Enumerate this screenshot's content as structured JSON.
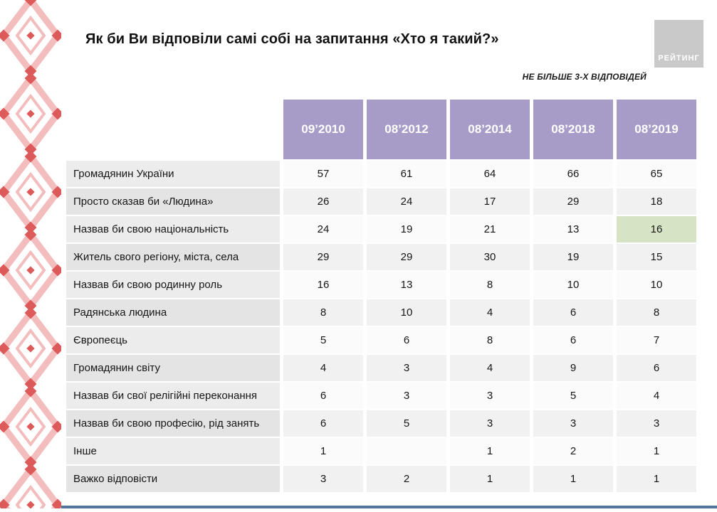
{
  "page": {
    "title": "Як би Ви відповіли самі собі на запитання «Хто я такий?»",
    "note": "НЕ БІЛЬШЕ 3-Х ВІДПОВІДЕЙ",
    "logo_text": "РЕЙТИНГ"
  },
  "colors": {
    "header_bg": "#a79cc8",
    "header_text": "#ffffff",
    "highlight_pink": "#f3dfdf",
    "highlight_green": "#d6e3c4",
    "accent_bar": "#53779c",
    "logo_bg": "#c9c9c9",
    "ornament_light": "#f3bdbd",
    "ornament_red": "#dc5a5a"
  },
  "chart_data": {
    "type": "table",
    "title": "Як би Ви відповіли самі собі на запитання «Хто я такий?»",
    "subtitle": "НЕ БІЛЬШЕ 3-Х ВІДПОВІДЕЙ",
    "legend_position": "none",
    "columns": [
      "09’2010",
      "08’2012",
      "08’2014",
      "08’2018",
      "08’2019"
    ],
    "rows": [
      {
        "label": "Громадянин України",
        "values": [
          "57",
          "61",
          "64",
          "66",
          "65"
        ]
      },
      {
        "label": "Просто сказав би «Людина»",
        "values": [
          "26",
          "24",
          "17",
          "29",
          "18"
        ],
        "highlights": [
          null,
          null,
          null,
          null,
          "pink"
        ]
      },
      {
        "label": "Назвав би свою національність",
        "values": [
          "24",
          "19",
          "21",
          "13",
          "16"
        ],
        "highlights": [
          null,
          null,
          null,
          null,
          "green"
        ]
      },
      {
        "label": "Житель свого регіону, міста, села",
        "values": [
          "29",
          "29",
          "30",
          "19",
          "15"
        ],
        "highlights": [
          null,
          null,
          null,
          null,
          "pink"
        ]
      },
      {
        "label": "Назвав би свою родинну роль",
        "values": [
          "16",
          "13",
          "8",
          "10",
          "10"
        ]
      },
      {
        "label": "Радянська людина",
        "values": [
          "8",
          "10",
          "4",
          "6",
          "8"
        ]
      },
      {
        "label": "Європеєць",
        "values": [
          "5",
          "6",
          "8",
          "6",
          "7"
        ]
      },
      {
        "label": "Громадянин світу",
        "values": [
          "4",
          "3",
          "4",
          "9",
          "6"
        ],
        "highlights": [
          null,
          null,
          null,
          null,
          "pink"
        ]
      },
      {
        "label": "Назвав би свої релігійні переконання",
        "values": [
          "6",
          "3",
          "3",
          "5",
          "4"
        ]
      },
      {
        "label": "Назвав би свою професію, рід занять",
        "values": [
          "6",
          "5",
          "3",
          "3",
          "3"
        ]
      },
      {
        "label": "Інше",
        "values": [
          "1",
          "",
          "1",
          "2",
          "1"
        ]
      },
      {
        "label": "Важко відповісти",
        "values": [
          "3",
          "2",
          "1",
          "1",
          "1"
        ]
      }
    ]
  }
}
